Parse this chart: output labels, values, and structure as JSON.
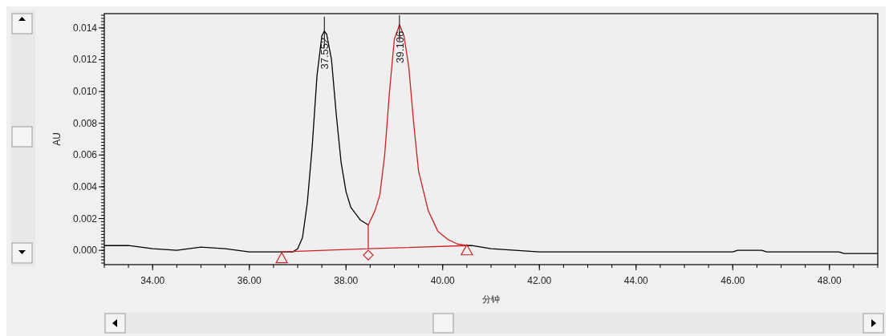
{
  "chart_data": {
    "type": "line",
    "xlabel": "分钟",
    "ylabel": "AU",
    "xlim": [
      33,
      49
    ],
    "ylim": [
      -0.0009,
      0.0149
    ],
    "xticks": [
      {
        "value": 34,
        "label": "34.00"
      },
      {
        "value": 36,
        "label": "36.00"
      },
      {
        "value": 38,
        "label": "38.00"
      },
      {
        "value": 40,
        "label": "40.00"
      },
      {
        "value": 42,
        "label": "42.00"
      },
      {
        "value": 44,
        "label": "44.00"
      },
      {
        "value": 46,
        "label": "46.00"
      },
      {
        "value": 48,
        "label": "48.00"
      }
    ],
    "yticks": [
      {
        "value": 0,
        "label": "0.000"
      },
      {
        "value": 0.002,
        "label": "0.002"
      },
      {
        "value": 0.004,
        "label": "0.004"
      },
      {
        "value": 0.006,
        "label": "0.006"
      },
      {
        "value": 0.008,
        "label": "0.008"
      },
      {
        "value": 0.01,
        "label": "0.010"
      },
      {
        "value": 0.012,
        "label": "0.012"
      },
      {
        "value": 0.014,
        "label": "0.014"
      }
    ],
    "grid": false,
    "line_style": "solid",
    "series": [
      {
        "color": "#000000",
        "marker": "none",
        "x": [
          33.0,
          33.5,
          34.0,
          34.5,
          35.0,
          35.5,
          36.0,
          36.5,
          36.9,
          37.0,
          37.1,
          37.2,
          37.3,
          37.4,
          37.5,
          37.552,
          37.6,
          37.7,
          37.8,
          37.9,
          38.0,
          38.1,
          38.3,
          38.46,
          39.0,
          40.5,
          40.6,
          41.0,
          41.5,
          42.0,
          42.5,
          46.0,
          46.1,
          46.6,
          46.7,
          48.2,
          48.3,
          49.0
        ],
        "values": [
          0.0003,
          0.0003,
          0.0001,
          0.0,
          0.0002,
          0.0001,
          -0.0001,
          -0.0001,
          -0.0001,
          0.0001,
          0.0008,
          0.003,
          0.0065,
          0.011,
          0.0135,
          0.0138,
          0.0136,
          0.012,
          0.0085,
          0.0055,
          0.0037,
          0.0027,
          0.0019,
          0.0016,
          null,
          0.0003,
          0.0003,
          0.0001,
          0.0,
          -0.0001,
          -0.0001,
          -0.0001,
          0.0,
          0.0,
          -0.0001,
          -0.0001,
          -0.0002,
          -0.0002
        ]
      },
      {
        "color": "#cc2222",
        "marker": "none",
        "x": [
          36.67,
          38.46,
          38.46,
          38.6,
          38.7,
          38.8,
          38.9,
          39.0,
          39.106,
          39.2,
          39.3,
          39.4,
          39.5,
          39.7,
          39.9,
          40.1,
          40.3,
          40.5,
          38.46
        ],
        "values": [
          -0.0001,
          0.0001,
          0.0016,
          0.0025,
          0.0035,
          0.006,
          0.01,
          0.0133,
          0.0142,
          0.0135,
          0.0115,
          0.008,
          0.005,
          0.0025,
          0.0012,
          0.0007,
          0.0004,
          0.0003,
          0.0001
        ]
      },
      {
        "type": "scatter",
        "color": "#cc2222",
        "marker": "triangle",
        "x": [
          36.67,
          40.5
        ],
        "values": [
          -0.0005,
          0.0
        ]
      },
      {
        "type": "scatter",
        "color": "#cc2222",
        "marker": "diamond",
        "x": [
          38.46
        ],
        "values": [
          -0.0003
        ]
      }
    ],
    "annotations": [
      {
        "text": "37.552",
        "x": 37.552,
        "y": 0.0138
      },
      {
        "text": "39.106",
        "x": 39.106,
        "y": 0.0142
      }
    ]
  }
}
